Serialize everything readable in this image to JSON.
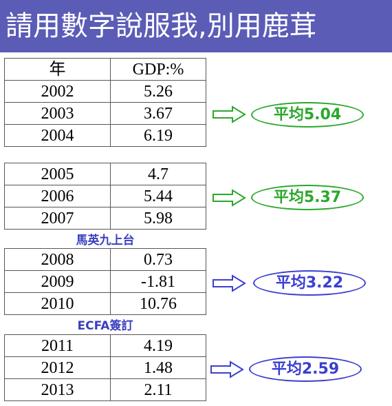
{
  "header": {
    "title": "請用數字說服我,別用鹿茸"
  },
  "groups": [
    {
      "columns": [
        "年",
        "GDP:%"
      ],
      "rows": [
        [
          "2002",
          "5.26"
        ],
        [
          "2003",
          "3.67"
        ],
        [
          "2004",
          "6.19"
        ]
      ],
      "average": "平均5.04"
    },
    {
      "rows": [
        [
          "2005",
          "4.7"
        ],
        [
          "2006",
          "5.44"
        ],
        [
          "2007",
          "5.98"
        ]
      ],
      "average": "平均5.37"
    },
    {
      "caption": "馬英九上台",
      "rows": [
        [
          "2008",
          "0.73"
        ],
        [
          "2009",
          "-1.81"
        ],
        [
          "2010",
          "10.76"
        ]
      ],
      "average": "平均3.22"
    },
    {
      "caption": "ECFA簽訂",
      "rows": [
        [
          "2011",
          "4.19"
        ],
        [
          "2012",
          "1.48"
        ],
        [
          "2013",
          "2.11"
        ]
      ],
      "average": "平均2.59"
    }
  ]
}
